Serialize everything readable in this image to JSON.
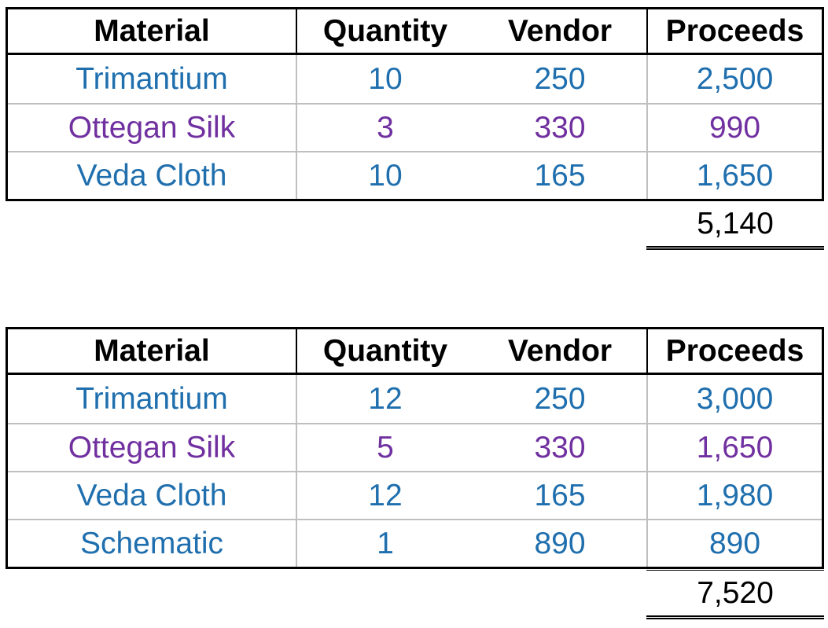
{
  "colors": {
    "blue": "#1f6fae",
    "purple": "#7030a0",
    "header": "#000000"
  },
  "tables": [
    {
      "headers": [
        "Material",
        "Quantity",
        "Vendor",
        "Proceeds"
      ],
      "rows": [
        {
          "material": "Trimantium",
          "quantity": "10",
          "vendor": "250",
          "proceeds": "2,500",
          "color": "#1f6fae"
        },
        {
          "material": "Ottegan Silk",
          "quantity": "3",
          "vendor": "330",
          "proceeds": "990",
          "color": "#7030a0"
        },
        {
          "material": "Veda Cloth",
          "quantity": "10",
          "vendor": "165",
          "proceeds": "1,650",
          "color": "#1f6fae"
        }
      ],
      "total": "5,140"
    },
    {
      "headers": [
        "Material",
        "Quantity",
        "Vendor",
        "Proceeds"
      ],
      "rows": [
        {
          "material": "Trimantium",
          "quantity": "12",
          "vendor": "250",
          "proceeds": "3,000",
          "color": "#1f6fae"
        },
        {
          "material": "Ottegan Silk",
          "quantity": "5",
          "vendor": "330",
          "proceeds": "1,650",
          "color": "#7030a0"
        },
        {
          "material": "Veda Cloth",
          "quantity": "12",
          "vendor": "165",
          "proceeds": "1,980",
          "color": "#1f6fae"
        },
        {
          "material": "Schematic",
          "quantity": "1",
          "vendor": "890",
          "proceeds": "890",
          "color": "#1f6fae"
        }
      ],
      "total": "7,520"
    }
  ]
}
